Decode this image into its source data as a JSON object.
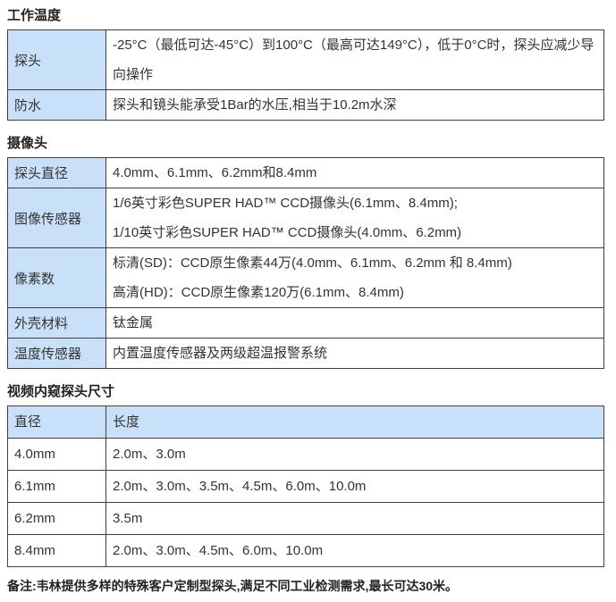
{
  "page": {
    "accent_blue": "#c8e0f8",
    "border_color": "#404040",
    "text_color": "#333333"
  },
  "sections": [
    {
      "title": "工作温度",
      "rows": [
        {
          "label": "探头",
          "lines": [
            "-25°C（最低可达-45°C）到100°C（最高可达149°C），低于0°C时，探头应减少导向操作"
          ]
        },
        {
          "label": "防水",
          "lines": [
            "探头和镜头能承受1Bar的水压,相当于10.2m水深"
          ]
        }
      ]
    },
    {
      "title": "摄像头",
      "rows": [
        {
          "label": "探头直径",
          "lines": [
            "4.0mm、6.1mm、6.2mm和8.4mm"
          ]
        },
        {
          "label": "图像传感器",
          "lines": [
            "1/6英寸彩色SUPER HAD™ CCD摄像头(6.1mm、8.4mm);",
            "1/10英寸彩色SUPER HAD™ CCD摄像头(4.0mm、6.2mm)"
          ]
        },
        {
          "label": "像素数",
          "lines": [
            "标清(SD)：CCD原生像素44万(4.0mm、6.1mm、6.2mm 和 8.4mm)",
            "高清(HD)：CCD原生像素120万(6.1mm、8.4mm)"
          ]
        },
        {
          "label": "外壳材料",
          "lines": [
            "钛金属"
          ]
        },
        {
          "label": "温度传感器",
          "lines": [
            "内置温度传感器及两级超温报警系统"
          ]
        }
      ]
    }
  ],
  "probe_table": {
    "title": "视频内窥探头尺寸",
    "headers": [
      "直径",
      "长度"
    ],
    "rows": [
      {
        "diameter": "4.0mm",
        "lengths": "2.0m、3.0m"
      },
      {
        "diameter": "6.1mm",
        "lengths": "2.0m、3.0m、3.5m、4.5m、6.0m、10.0m"
      },
      {
        "diameter": "6.2mm",
        "lengths": "3.5m"
      },
      {
        "diameter": "8.4mm",
        "lengths": "2.0m、3.0m、4.5m、6.0m、10.0m"
      }
    ]
  },
  "footnote": "备注:韦林提供多样的特殊客户定制型探头,满足不同工业检测需求,最长可达30米。"
}
